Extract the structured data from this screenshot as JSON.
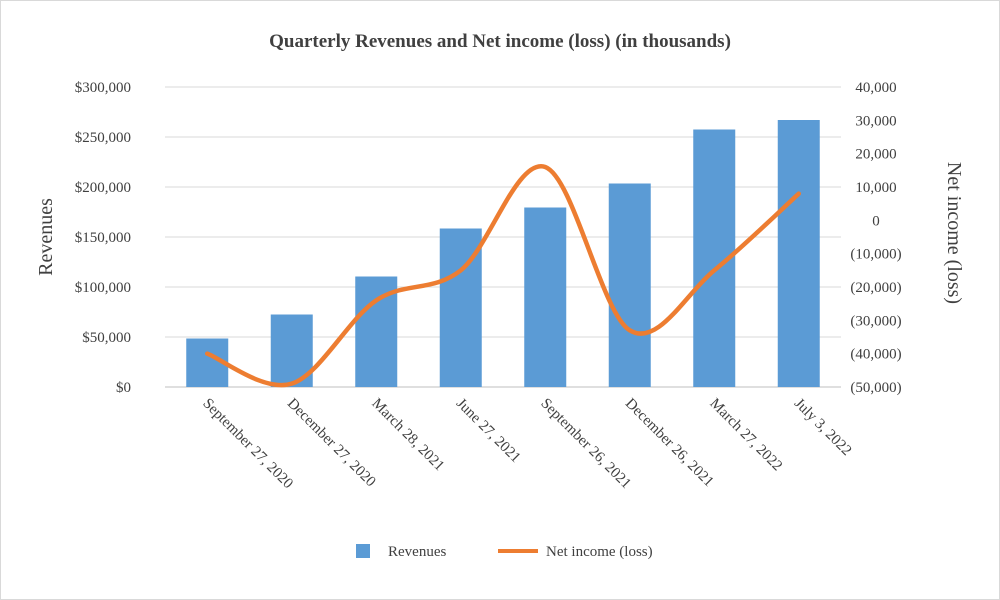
{
  "chart_data": {
    "type": "bar+line",
    "title": "Quarterly Revenues and Net income (loss) (in thousands)",
    "categories": [
      "September 27, 2020",
      "December 27, 2020",
      "March 28, 2021",
      "June 27, 2021",
      "September 26, 2021",
      "December 26, 2021",
      "March 27, 2022",
      "July 3, 2022"
    ],
    "series": [
      {
        "name": "Revenues",
        "type": "bar",
        "axis": "left",
        "color": "#5b9bd5",
        "values": [
          48500,
          72500,
          110500,
          158500,
          179500,
          203500,
          257500,
          267000
        ]
      },
      {
        "name": "Net income (loss)",
        "type": "line",
        "axis": "right",
        "color": "#ed7d31",
        "values": [
          -40000,
          -49000,
          -24000,
          -15000,
          16000,
          -33000,
          -15000,
          8000
        ]
      }
    ],
    "y_left": {
      "label": "Revenues",
      "ylim": [
        0,
        300000
      ],
      "ticks": [
        0,
        50000,
        100000,
        150000,
        200000,
        250000,
        300000
      ],
      "tick_labels": [
        "$0",
        "$50,000",
        "$100,000",
        "$150,000",
        "$200,000",
        "$250,000",
        "$300,000"
      ]
    },
    "y_right": {
      "label": "Net income (loss)",
      "ylim": [
        -50000,
        40000
      ],
      "ticks": [
        -50000,
        -40000,
        -30000,
        -20000,
        -10000,
        0,
        10000,
        20000,
        30000,
        40000
      ],
      "tick_labels": [
        "(50,000)",
        "(40,000)",
        "(30,000)",
        "(20,000)",
        "(10,000)",
        "0",
        "10,000",
        "20,000",
        "30,000",
        "40,000"
      ]
    },
    "grid": true,
    "legend": {
      "position": "bottom",
      "entries": [
        "Revenues",
        "Net income (loss)"
      ]
    }
  }
}
